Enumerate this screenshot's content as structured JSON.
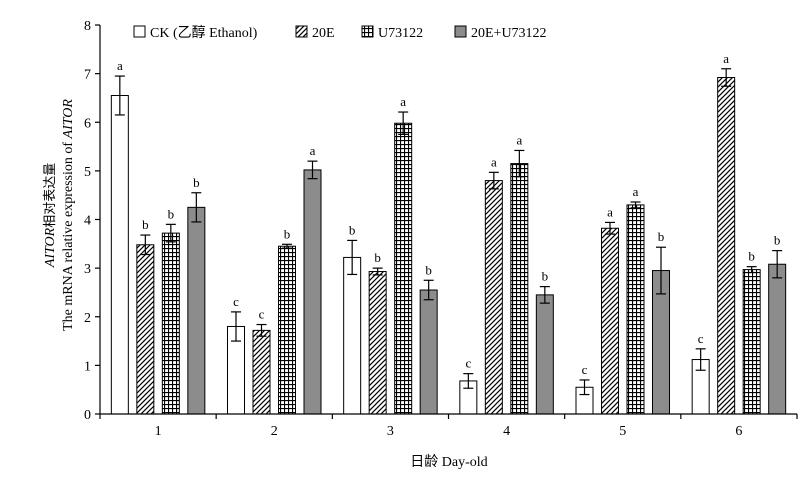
{
  "chart_data": {
    "type": "bar",
    "xlabel": "日龄 Day-old",
    "ylabel_italic": "AITOR",
    "ylabel_mid": "相对表达量",
    "ylabel_line2_prefix": "The mRNA relative expression of ",
    "ylabel_line2_italic": "AITOR",
    "categories": [
      "1",
      "2",
      "3",
      "4",
      "5",
      "6"
    ],
    "ylim": [
      0,
      8
    ],
    "yticks": [
      "0",
      "1",
      "2",
      "3",
      "4",
      "5",
      "6",
      "7",
      "8"
    ],
    "legend_position": "top-left",
    "series": [
      {
        "name": "CK (乙醇  Ethanol)",
        "pattern": "white",
        "values": [
          6.55,
          1.8,
          3.22,
          0.68,
          0.55,
          1.12
        ],
        "errors": [
          0.4,
          0.3,
          0.35,
          0.15,
          0.15,
          0.22
        ],
        "labels": [
          "a",
          "c",
          "b",
          "c",
          "c",
          "c"
        ]
      },
      {
        "name": "20E",
        "pattern": "hatch",
        "values": [
          3.48,
          1.72,
          2.93,
          4.8,
          3.82,
          6.92
        ],
        "errors": [
          0.2,
          0.12,
          0.07,
          0.17,
          0.12,
          0.18
        ],
        "labels": [
          "b",
          "c",
          "b",
          "a",
          "a",
          "a"
        ]
      },
      {
        "name": "U73122",
        "pattern": "grid",
        "values": [
          3.72,
          3.45,
          5.98,
          5.15,
          4.3,
          2.97
        ],
        "errors": [
          0.18,
          0.04,
          0.23,
          0.27,
          0.06,
          0.06
        ],
        "labels": [
          "b",
          "b",
          "a",
          "a",
          "a",
          "b"
        ]
      },
      {
        "name": "20E+U73122",
        "pattern": "gray",
        "values": [
          4.25,
          5.02,
          2.55,
          2.45,
          2.95,
          3.08
        ],
        "errors": [
          0.3,
          0.18,
          0.2,
          0.17,
          0.48,
          0.28
        ],
        "labels": [
          "b",
          "a",
          "b",
          "b",
          "b",
          "b"
        ]
      }
    ]
  }
}
